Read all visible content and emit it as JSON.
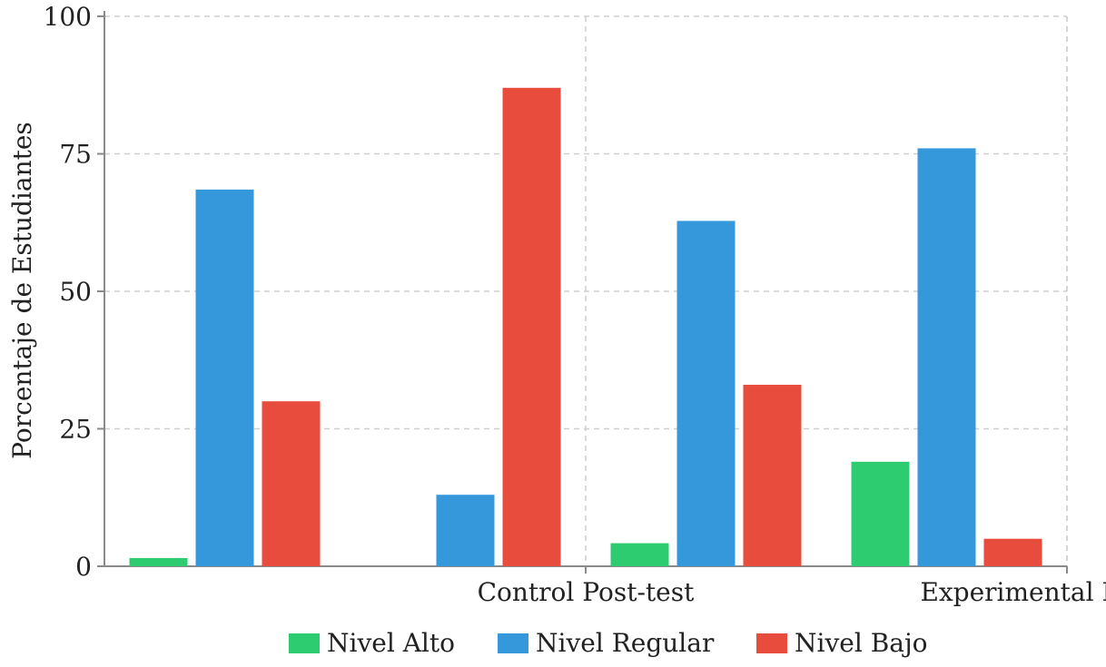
{
  "chart_data": {
    "type": "bar",
    "title": "",
    "xlabel": "",
    "ylabel": "Porcentaje de Estudiantes",
    "ylim": [
      0,
      100
    ],
    "yticks": [
      0,
      25,
      50,
      75,
      100
    ],
    "grid": true,
    "legend_position": "bottom",
    "groups": 4,
    "x_tick_labels": [
      {
        "label": "Control Post-test",
        "after_group": 1
      },
      {
        "label": "Experimental Post-test",
        "after_group": 3
      }
    ],
    "series": [
      {
        "name": "Nivel Alto",
        "color": "#2ecc71",
        "values": [
          1.5,
          0,
          4.2,
          19
        ]
      },
      {
        "name": "Nivel Regular",
        "color": "#3498db",
        "values": [
          68.5,
          13,
          62.8,
          76
        ]
      },
      {
        "name": "Nivel Bajo",
        "color": "#e74c3c",
        "values": [
          30,
          87,
          33,
          5
        ]
      }
    ]
  }
}
